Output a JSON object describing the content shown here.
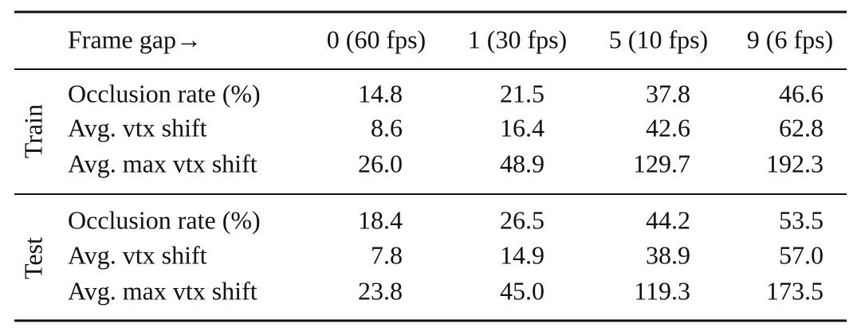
{
  "table": {
    "header": [
      "Frame gap→",
      "0 (60 fps)",
      "1 (30 fps)",
      "5 (10 fps)",
      "9 (6 fps)"
    ],
    "groups": [
      {
        "label": "Train",
        "rows": [
          [
            "Occlusion rate (%)",
            "14.8",
            "21.5",
            "37.8",
            "46.6"
          ],
          [
            "Avg. vtx shift",
            "8.6",
            "16.4",
            "42.6",
            "62.8"
          ],
          [
            "Avg. max vtx shift",
            "26.0",
            "48.9",
            "129.7",
            "192.3"
          ]
        ]
      },
      {
        "label": "Test",
        "rows": [
          [
            "Occlusion rate (%)",
            "18.4",
            "26.5",
            "44.2",
            "53.5"
          ],
          [
            "Avg. vtx shift",
            "7.8",
            "14.9",
            "38.9",
            "57.0"
          ],
          [
            "Avg. max vtx shift",
            "23.8",
            "45.0",
            "119.3",
            "173.5"
          ]
        ]
      }
    ]
  }
}
